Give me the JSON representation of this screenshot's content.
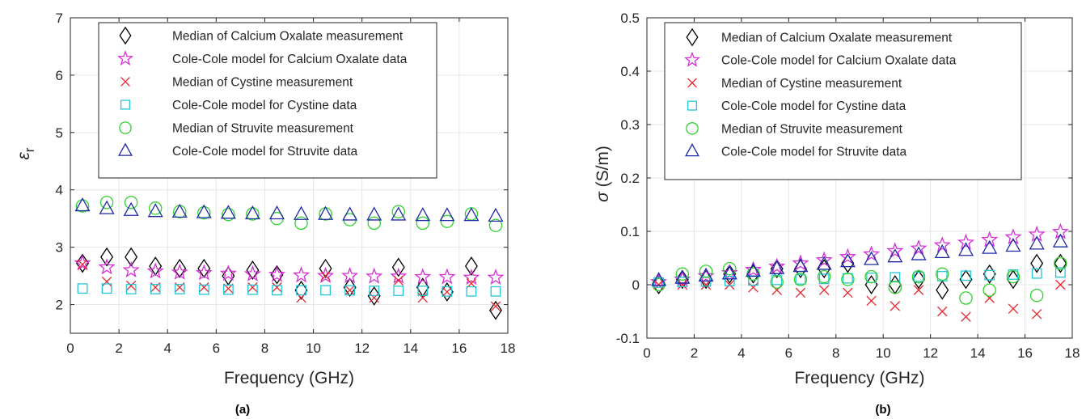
{
  "colors": {
    "calcium_median": "#000000",
    "calcium_model": "#d62dd6",
    "cystine_median": "#e8252b",
    "cystine_model": "#22c6d6",
    "struvite_median": "#2ed22e",
    "struvite_model": "#1f2aa8",
    "grid": "#e6e6e6",
    "axis": "#262626"
  },
  "legend_markers": [
    "diamond",
    "star",
    "cross",
    "square",
    "circle",
    "triangle"
  ],
  "chart_data": [
    {
      "type": "scatter",
      "caption": "(a)",
      "xlabel": "Frequency (GHz)",
      "ylabel_symbol": "ε",
      "ylabel_subscript": "r",
      "xlim": [
        0,
        18
      ],
      "ylim": [
        1.5,
        7
      ],
      "xticks": [
        "0",
        "2",
        "4",
        "6",
        "8",
        "10",
        "12",
        "14",
        "16",
        "18"
      ],
      "yticks": [
        "2",
        "3",
        "4",
        "5",
        "6",
        "7"
      ],
      "grid": true,
      "legend_position": "top",
      "x": [
        0.5,
        1.5,
        2.5,
        3.5,
        4.5,
        5.5,
        6.5,
        7.5,
        8.5,
        9.5,
        10.5,
        11.5,
        12.5,
        13.5,
        14.5,
        15.5,
        16.5,
        17.5
      ],
      "series": [
        {
          "name": "Median of Calcium Oxalate measurement",
          "marker": "diamond",
          "values": [
            2.72,
            2.83,
            2.83,
            2.67,
            2.63,
            2.63,
            2.5,
            2.6,
            2.52,
            2.25,
            2.63,
            2.3,
            2.15,
            2.65,
            2.3,
            2.22,
            2.67,
            1.9
          ]
        },
        {
          "name": "Cole-Cole model for Calcium Oxalate data",
          "marker": "star",
          "values": [
            2.72,
            2.65,
            2.6,
            2.58,
            2.56,
            2.55,
            2.54,
            2.53,
            2.52,
            2.51,
            2.5,
            2.5,
            2.49,
            2.49,
            2.48,
            2.48,
            2.47,
            2.47
          ]
        },
        {
          "name": "Median of Cystine measurement",
          "marker": "cross",
          "values": [
            2.7,
            2.4,
            2.33,
            2.3,
            2.3,
            2.3,
            2.28,
            2.3,
            2.3,
            2.12,
            2.5,
            2.25,
            2.12,
            2.42,
            2.12,
            2.22,
            2.37,
            1.97
          ]
        },
        {
          "name": "Cole-Cole model for Cystine data",
          "marker": "square",
          "values": [
            2.28,
            2.28,
            2.27,
            2.27,
            2.27,
            2.26,
            2.26,
            2.26,
            2.25,
            2.25,
            2.25,
            2.25,
            2.24,
            2.24,
            2.24,
            2.23,
            2.23,
            2.23
          ]
        },
        {
          "name": "Median of Struvite measurement",
          "marker": "circle",
          "values": [
            3.72,
            3.78,
            3.78,
            3.68,
            3.62,
            3.6,
            3.57,
            3.58,
            3.5,
            3.42,
            3.58,
            3.48,
            3.42,
            3.62,
            3.42,
            3.45,
            3.58,
            3.38
          ]
        },
        {
          "name": "Cole-Cole model for Struvite data",
          "marker": "triangle",
          "values": [
            3.72,
            3.67,
            3.64,
            3.62,
            3.61,
            3.6,
            3.59,
            3.58,
            3.58,
            3.57,
            3.57,
            3.56,
            3.56,
            3.56,
            3.55,
            3.55,
            3.55,
            3.54
          ]
        }
      ]
    },
    {
      "type": "scatter",
      "caption": "(b)",
      "xlabel": "Frequency (GHz)",
      "ylabel_symbol": "σ",
      "ylabel_text": " (S/m)",
      "xlim": [
        0,
        18
      ],
      "ylim": [
        -0.1,
        0.5
      ],
      "xticks": [
        "0",
        "2",
        "4",
        "6",
        "8",
        "10",
        "12",
        "14",
        "16",
        "18"
      ],
      "yticks": [
        "-0.1",
        "0",
        "0.1",
        "0.2",
        "0.3",
        "0.4",
        "0.5"
      ],
      "grid": true,
      "legend_position": "top",
      "x": [
        0.5,
        1.5,
        2.5,
        3.5,
        4.5,
        5.5,
        6.5,
        7.5,
        8.5,
        9.5,
        10.5,
        11.5,
        12.5,
        13.5,
        14.5,
        15.5,
        16.5,
        17.5
      ],
      "series": [
        {
          "name": "Median of Calcium Oxalate measurement",
          "marker": "diamond",
          "values": [
            0.0,
            0.01,
            0.01,
            0.02,
            0.02,
            0.03,
            0.03,
            0.03,
            0.04,
            0.0,
            0.0,
            0.01,
            -0.01,
            0.01,
            0.02,
            0.01,
            0.04,
            0.04
          ]
        },
        {
          "name": "Cole-Cole model for Calcium Oxalate data",
          "marker": "star",
          "values": [
            0.005,
            0.01,
            0.016,
            0.022,
            0.028,
            0.034,
            0.04,
            0.046,
            0.052,
            0.057,
            0.063,
            0.068,
            0.074,
            0.079,
            0.084,
            0.089,
            0.094,
            0.099
          ]
        },
        {
          "name": "Median of Cystine measurement",
          "marker": "cross",
          "values": [
            0.0,
            0.0,
            0.0,
            0.0,
            -0.005,
            -0.01,
            -0.015,
            -0.01,
            -0.015,
            -0.03,
            -0.04,
            -0.01,
            -0.05,
            -0.06,
            -0.025,
            -0.045,
            -0.055,
            0.0
          ]
        },
        {
          "name": "Cole-Cole model for Cystine data",
          "marker": "square",
          "values": [
            0.004,
            0.005,
            0.006,
            0.007,
            0.008,
            0.009,
            0.01,
            0.011,
            0.012,
            0.013,
            0.014,
            0.015,
            0.016,
            0.017,
            0.018,
            0.019,
            0.021,
            0.023
          ]
        },
        {
          "name": "Median of Struvite measurement",
          "marker": "circle",
          "values": [
            0.0,
            0.02,
            0.025,
            0.03,
            0.02,
            0.005,
            0.01,
            0.015,
            0.01,
            0.015,
            -0.005,
            0.015,
            0.02,
            -0.025,
            -0.01,
            0.015,
            -0.02,
            0.04
          ]
        },
        {
          "name": "Cole-Cole model for Struvite data",
          "marker": "triangle",
          "values": [
            0.008,
            0.012,
            0.016,
            0.02,
            0.025,
            0.03,
            0.034,
            0.038,
            0.043,
            0.047,
            0.052,
            0.056,
            0.06,
            0.064,
            0.068,
            0.072,
            0.076,
            0.08
          ]
        }
      ]
    }
  ]
}
